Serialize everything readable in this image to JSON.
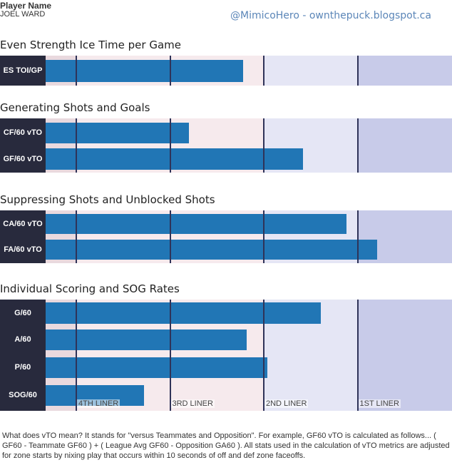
{
  "header": {
    "player_label": "Player Name",
    "player_name": "JOEL WARD",
    "credit": "@MimicoHero - ownthepuck.blogspot.ca"
  },
  "colors": {
    "bar": "#2176b5",
    "label_background": "#282a3d",
    "zones": [
      "#e9d9de",
      "#f6eaed",
      "#e5e6f5",
      "#c8cbe9"
    ],
    "tier_line": "#2f3358"
  },
  "chart_data": {
    "type": "bar",
    "orientation": "horizontal",
    "tier_lines": [
      {
        "label": "4TH LINER",
        "value": 1
      },
      {
        "label": "3RD LINER",
        "value": 2
      },
      {
        "label": "2ND LINER",
        "value": 3
      },
      {
        "label": "1ST LINER",
        "value": 4
      }
    ],
    "xlim": [
      0.75,
      5.1
    ],
    "grid": false,
    "sections": [
      {
        "title": "Even Strength Ice Time per Game",
        "rows": [
          {
            "label": "ES TOI/GP",
            "value": 2.78
          }
        ]
      },
      {
        "title": "Generating Shots and Goals",
        "rows": [
          {
            "label": "CF/60 vTO",
            "value": 2.2
          },
          {
            "label": "GF/60 vTO",
            "value": 3.42
          }
        ]
      },
      {
        "title": "Suppressing Shots and Unblocked Shots",
        "rows": [
          {
            "label": "CA/60 vTO",
            "value": 3.88
          },
          {
            "label": "FA/60 vTO",
            "value": 4.21
          }
        ]
      },
      {
        "title": "Individual Scoring and SOG Rates",
        "rows": [
          {
            "label": "G/60",
            "value": 3.61
          },
          {
            "label": "A/60",
            "value": 2.82
          },
          {
            "label": "P/60",
            "value": 3.04
          },
          {
            "label": "SOG/60",
            "value": 1.72
          }
        ]
      }
    ]
  },
  "footnote": "What does vTO mean? It stands for \"versus Teammates and Opposition\". For example, GF60 vTO is calculated as follows... ( GF60 - Teammate GF60 ) + ( League Avg GF60 - Opposition GA60 ). All stats used in the calculation of vTO metrics are adjusted for zone starts by nixing play that occurs within 10 seconds of off and def zone faceoffs."
}
